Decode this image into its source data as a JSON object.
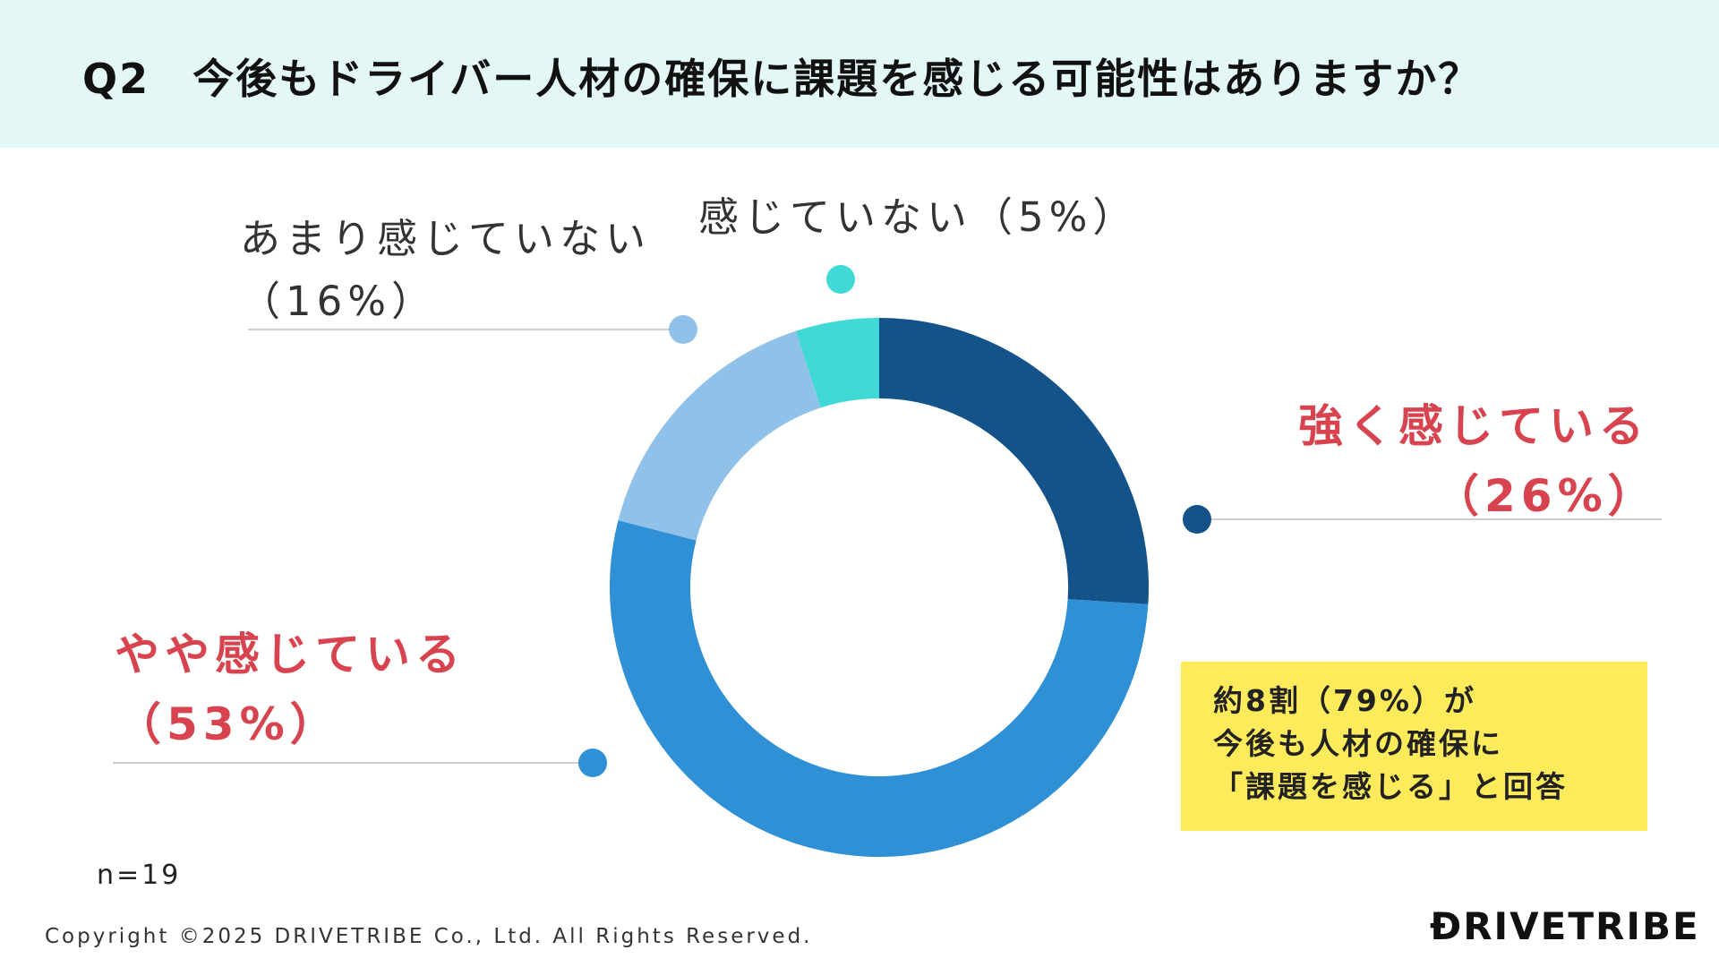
{
  "header": {
    "title": "Q2　今後もドライバー人材の確保に課題を感じる可能性はありますか？"
  },
  "chart_data": {
    "type": "pie",
    "variant": "donut",
    "slices": [
      {
        "label": "強く感じている",
        "value": 26,
        "display": "（26%）",
        "color": "#14528a"
      },
      {
        "label": "やや感じている",
        "value": 53,
        "display": "（53%）",
        "color": "#2f90d6"
      },
      {
        "label": "あまり感じていない",
        "value": 16,
        "display": "（16%）",
        "color": "#90c1e9"
      },
      {
        "label": "感じていない",
        "value": 5,
        "display": "（5%）",
        "color": "#3fd9d6"
      }
    ]
  },
  "labels": {
    "strong": {
      "line1": "強く感じている",
      "line2": "（26%）"
    },
    "somewhat": {
      "line1": "やや感じている",
      "line2": "（53%）"
    },
    "not_much": {
      "line1": "あまり感じていない",
      "line2": "（16%）"
    },
    "none": {
      "line1": "感じていない（5%）"
    }
  },
  "callout": {
    "line1": "約8割（79%）が",
    "line2": "今後も人材の確保に",
    "line3": "「課題を感じる」と回答",
    "color": "#feeb5c"
  },
  "footer": {
    "sample_size": "n=19",
    "copyright": "Copyright ©2025 DRIVETRIBE Co., Ltd. All Rights Reserved.",
    "logo": "ƉRIVETRIBE"
  },
  "colors": {
    "header_bg": "#e3f7f7",
    "highlight_text": "#d7444f",
    "leader_line": "#d0d0d0"
  }
}
